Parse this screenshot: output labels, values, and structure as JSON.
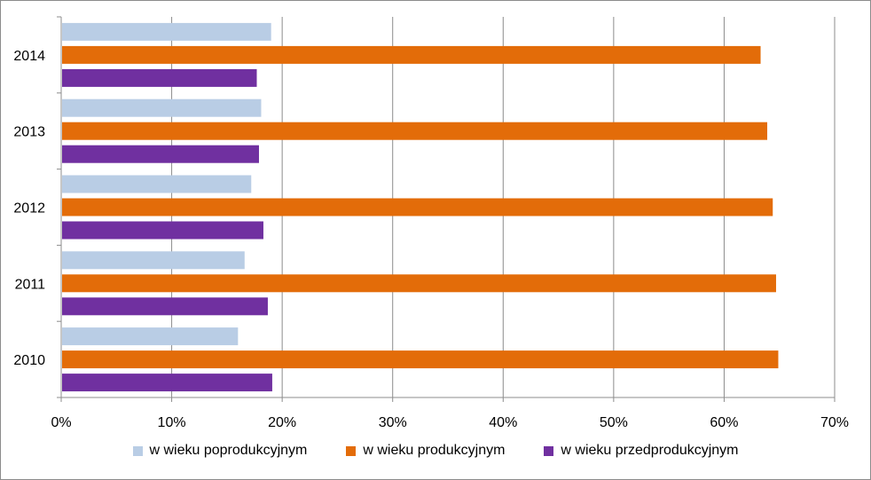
{
  "chart_data": {
    "type": "bar",
    "orientation": "horizontal",
    "title": "",
    "xlabel": "",
    "ylabel": "",
    "categories": [
      "2010",
      "2011",
      "2012",
      "2013",
      "2014"
    ],
    "series": [
      {
        "name": "w wieku poprodukcyjnym",
        "color": "#b9cde5",
        "values": [
          16.0,
          16.6,
          17.2,
          18.1,
          19.0
        ]
      },
      {
        "name": "w wieku produkcyjnym",
        "color": "#e36c09",
        "values": [
          64.9,
          64.7,
          64.4,
          63.9,
          63.3
        ]
      },
      {
        "name": "w wieku przedprodukcyjnym",
        "color": "#7030a0",
        "values": [
          19.1,
          18.7,
          18.3,
          17.9,
          17.7
        ]
      }
    ],
    "xlim": [
      0,
      70
    ],
    "xticks": [
      "0%",
      "10%",
      "20%",
      "30%",
      "40%",
      "50%",
      "60%",
      "70%"
    ],
    "grid": "vertical",
    "legend_position": "bottom"
  }
}
